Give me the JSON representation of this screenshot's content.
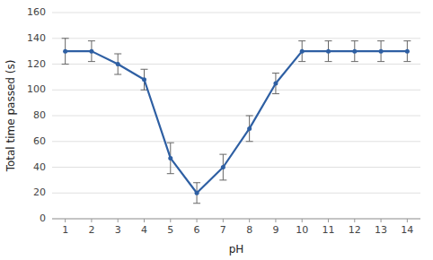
{
  "chart_data": {
    "type": "line",
    "x": [
      1,
      2,
      3,
      4,
      5,
      6,
      7,
      8,
      9,
      10,
      11,
      12,
      13,
      14
    ],
    "values": [
      130,
      130,
      120,
      108,
      47,
      20,
      40,
      70,
      105,
      130,
      130,
      130,
      130,
      130
    ],
    "errors": [
      10,
      8,
      8,
      8,
      12,
      8,
      10,
      10,
      8,
      8,
      8,
      8,
      8,
      8
    ],
    "color": "#2E5FA3",
    "marker": "circle",
    "xlabel": "pH",
    "ylabel": "Total time passed (s)",
    "xlim": [
      0.5,
      14.5
    ],
    "ylim": [
      0,
      160
    ],
    "xticks": [
      1,
      2,
      3,
      4,
      5,
      6,
      7,
      8,
      9,
      10,
      11,
      12,
      13,
      14
    ],
    "yticks": [
      0,
      20,
      40,
      60,
      80,
      100,
      120,
      140,
      160
    ],
    "grid": true
  }
}
